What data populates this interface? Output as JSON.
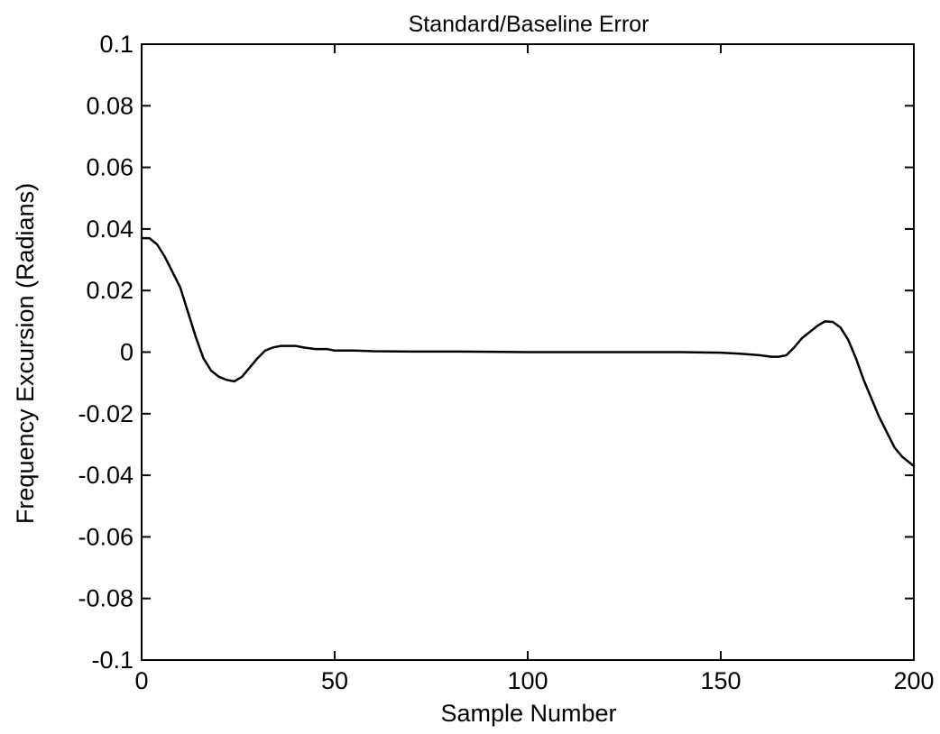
{
  "chart_data": {
    "type": "line",
    "title": "Standard/Baseline Error",
    "xlabel": "Sample Number",
    "ylabel": "Frequency Excursion (Radians)",
    "xlim": [
      0,
      200
    ],
    "ylim": [
      -0.1,
      0.1
    ],
    "xticks": [
      0,
      50,
      100,
      150,
      200
    ],
    "xtick_labels": [
      "0",
      "50",
      "100",
      "150",
      "200"
    ],
    "yticks": [
      0.1,
      0.08,
      0.06,
      0.04,
      0.02,
      0,
      -0.02,
      -0.04,
      -0.06,
      -0.08,
      -0.1
    ],
    "ytick_labels": [
      "0.1",
      "0.08",
      "0.06",
      "0.04",
      "0.02",
      "0",
      "-0.02",
      "-0.04",
      "-0.06",
      "-0.08",
      "-0.1"
    ],
    "grid": false,
    "series": [
      {
        "color": "#000000",
        "x": [
          0,
          2,
          4,
          6,
          8,
          10,
          12,
          14,
          16,
          18,
          20,
          22,
          24,
          26,
          28,
          30,
          32,
          34,
          36,
          38,
          40,
          42,
          45,
          48,
          50,
          55,
          60,
          70,
          80,
          90,
          100,
          110,
          120,
          130,
          140,
          150,
          155,
          160,
          163,
          165,
          167,
          169,
          171,
          173,
          175,
          177,
          179,
          181,
          183,
          185,
          187,
          189,
          191,
          193,
          195,
          197,
          199,
          200
        ],
        "y": [
          0.037,
          0.037,
          0.035,
          0.031,
          0.026,
          0.021,
          0.013,
          0.005,
          -0.002,
          -0.006,
          -0.008,
          -0.009,
          -0.0095,
          -0.008,
          -0.005,
          -0.002,
          0.0005,
          0.0015,
          0.002,
          0.002,
          0.002,
          0.0015,
          0.001,
          0.001,
          0.0005,
          0.0005,
          0.0003,
          0.0002,
          0.0002,
          0.0001,
          0.0,
          0.0,
          0.0,
          0.0,
          0.0,
          -0.0002,
          -0.0005,
          -0.001,
          -0.0015,
          -0.0015,
          -0.001,
          0.0015,
          0.0045,
          0.0065,
          0.0085,
          0.01,
          0.0098,
          0.008,
          0.004,
          -0.002,
          -0.009,
          -0.015,
          -0.021,
          -0.026,
          -0.031,
          -0.034,
          -0.036,
          -0.037
        ]
      }
    ]
  }
}
